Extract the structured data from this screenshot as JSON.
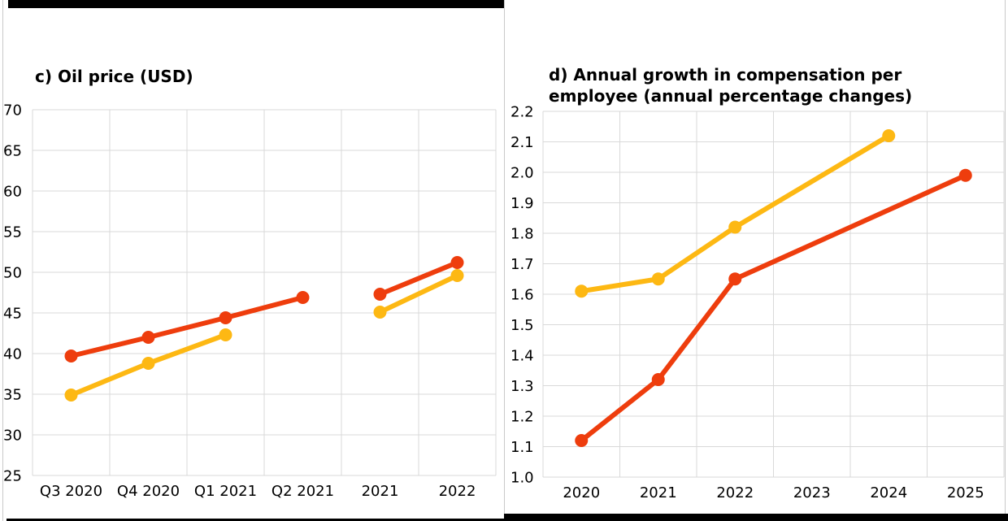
{
  "frame": {
    "background": "#ffffff",
    "edge_line_color": "#c9c9c9",
    "accent_bar_color": "#000000",
    "grid_color": "#d9d9d9",
    "text_color": "#000000"
  },
  "chart_data": [
    {
      "type": "line",
      "panel": "left",
      "title": "c) Oil price (USD)",
      "xlabel": "",
      "ylabel": "",
      "categories": [
        "Q3 2020",
        "Q4 2020",
        "Q1 2021",
        "Q2 2021",
        "2021",
        "2022"
      ],
      "ylim": [
        25,
        70
      ],
      "ytick_step": 5,
      "ytick_labels": [
        "70",
        "65",
        "60",
        "55",
        "50",
        "45",
        "40",
        "35",
        "30",
        "25"
      ],
      "grid": true,
      "legend": "none",
      "series": [
        {
          "name": "oil-red",
          "color": "#ee3d0d",
          "marker_radius": 8,
          "segments": [
            [
              [
                0,
                39.7
              ],
              [
                1,
                42.0
              ],
              [
                2,
                44.4
              ],
              [
                3,
                46.9
              ]
            ],
            [
              [
                4,
                47.3
              ],
              [
                5,
                51.2
              ]
            ]
          ]
        },
        {
          "name": "oil-yellow",
          "color": "#fdb813",
          "marker_radius": 8,
          "segments": [
            [
              [
                0,
                34.9
              ],
              [
                1,
                38.8
              ],
              [
                2,
                42.3
              ]
            ],
            [
              [
                4,
                45.1
              ],
              [
                5,
                49.6
              ]
            ]
          ]
        }
      ]
    },
    {
      "type": "line",
      "panel": "right",
      "title": "d) Annual growth in compensation per employee (annual percentage changes)",
      "xlabel": "",
      "ylabel": "",
      "categories": [
        "2020",
        "2021",
        "2022",
        "2023",
        "2024",
        "2025"
      ],
      "ylim": [
        1.0,
        2.2
      ],
      "ytick_step": 0.1,
      "ytick_labels": [
        "2.2",
        "2.1",
        "2.0",
        "1.9",
        "1.8",
        "1.7",
        "1.6",
        "1.5",
        "1.4",
        "1.3",
        "1.2",
        "1.1",
        "1.0"
      ],
      "grid": true,
      "legend": "none",
      "series": [
        {
          "name": "compensation-yellow",
          "color": "#fdb813",
          "marker_radius": 8,
          "segments": [
            [
              [
                0,
                1.61
              ],
              [
                1,
                1.65
              ],
              [
                2,
                1.82
              ],
              [
                4,
                2.12
              ]
            ]
          ]
        },
        {
          "name": "compensation-red",
          "color": "#ee3d0d",
          "marker_radius": 8,
          "segments": [
            [
              [
                0,
                1.12
              ],
              [
                1,
                1.32
              ],
              [
                2,
                1.65
              ],
              [
                5,
                1.99
              ]
            ]
          ]
        }
      ]
    }
  ]
}
